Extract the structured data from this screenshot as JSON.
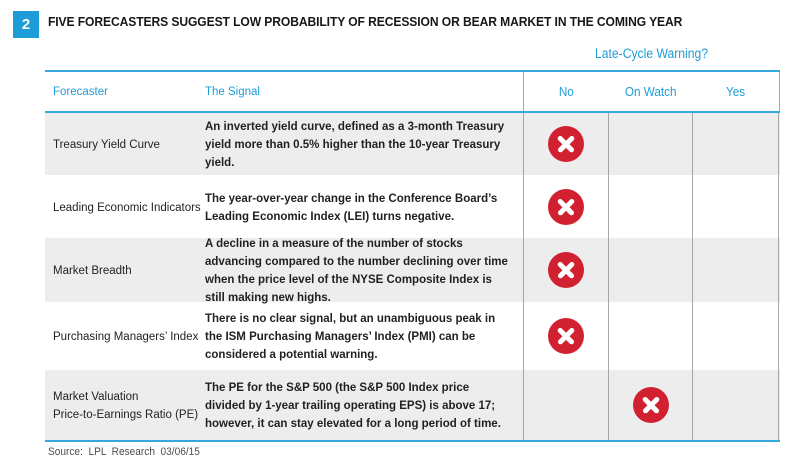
{
  "page": {
    "badge": "2",
    "title": "FIVE FORECASTERS SUGGEST LOW PROBABILITY OF RECESSION OR BEAR MARKET IN THE COMING YEAR",
    "warning_header": "Late-Cycle Warning?",
    "source": "Source: LPL Research 03/06/15"
  },
  "table": {
    "columns": {
      "forecaster": "Forecaster",
      "signal": "The Signal",
      "options": [
        "No",
        "On Watch",
        "Yes"
      ]
    },
    "rows": [
      {
        "forecaster": "Treasury Yield Curve",
        "signal": "An inverted yield curve, defined as a 3-month Treasury yield more than 0.5% higher than the 10-year Treasury yield.",
        "warning": "No"
      },
      {
        "forecaster": "Leading Economic Indicators",
        "signal": "The year-over-year change in the Conference Board’s Leading Economic Index (LEI) turns negative.",
        "warning": "No"
      },
      {
        "forecaster": "Market Breadth",
        "signal": "A decline in a measure of the number of stocks advancing compared to the number declining over time when the price level of the NYSE Composite Index is still making new highs.",
        "warning": "No"
      },
      {
        "forecaster": "Purchasing Managers’ Index",
        "signal": "There is no clear signal, but an unambiguous peak in the ISM Purchasing Managers’ Index (PMI) can be considered a potential warning.",
        "warning": "No"
      },
      {
        "forecaster": "Market Valuation\nPrice-to-Earnings Ratio (PE)",
        "signal": "The PE for the S&P 500 (the S&P 500 Index price divided by 1-year trailing operating EPS) is above 17; however, it can stay elevated for a long period of time.",
        "warning": "On Watch"
      }
    ]
  },
  "colors": {
    "accent_blue": "#1e9cd7",
    "rule_blue": "#35a9dc",
    "mark_red": "#d1202f",
    "row_gray": "#ededee",
    "divider_gray": "#a6a6a8",
    "text_dark": "#231f20"
  }
}
